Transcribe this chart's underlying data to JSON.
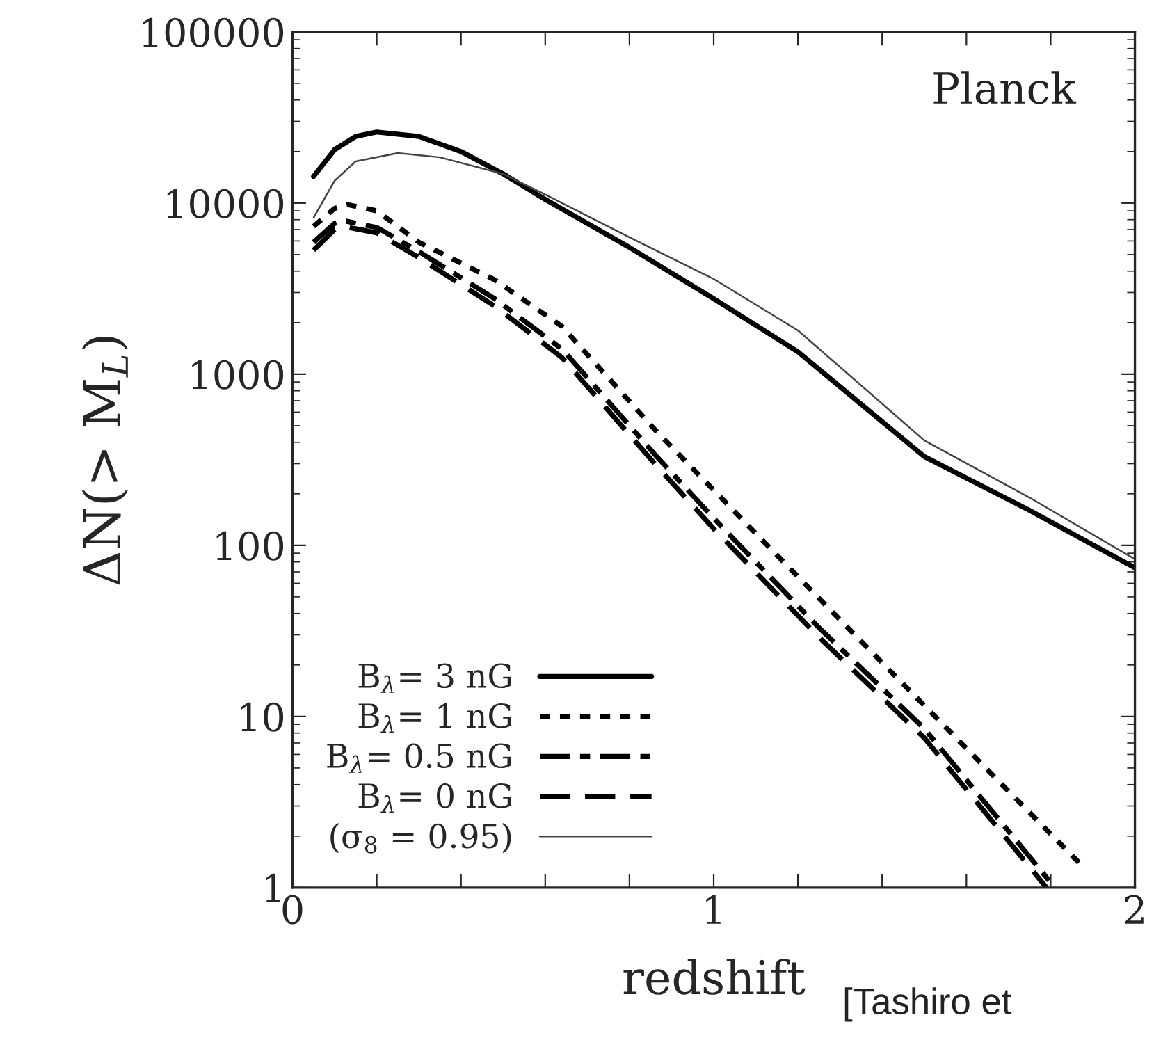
{
  "chart_data": {
    "type": "line",
    "xlabel": "redshift",
    "ylabel": "ΔN(> M$_{L}$)",
    "log": "y",
    "grid": false,
    "legend": "bottom left",
    "marker": "none",
    "xlim": [
      0,
      2
    ],
    "ylim": [
      1,
      100000
    ],
    "xticks": [
      0,
      {
        "value": 0.2,
        "label": null
      },
      {
        "value": 0.4,
        "label": null
      },
      {
        "value": 0.6,
        "label": null
      },
      {
        "value": 0.8,
        "label": null
      },
      1,
      {
        "value": 1.2,
        "label": null
      },
      {
        "value": 1.4,
        "label": null
      },
      {
        "value": 1.6,
        "label": null
      },
      {
        "value": 1.8,
        "label": null
      },
      2
    ],
    "yticks": [
      1,
      10,
      100,
      1000,
      10000,
      100000
    ],
    "series": [
      {
        "name": "B$_{λ}$= 3 nG",
        "color": "#000000",
        "line_style": "solid",
        "x": [
          0.05,
          0.1,
          0.15,
          0.2,
          0.3,
          0.4,
          0.5,
          0.6,
          0.8,
          1.0,
          1.2,
          1.5,
          1.75,
          2.0
        ],
        "values": [
          14300,
          20500,
          24500,
          26000,
          24500,
          20000,
          14800,
          10500,
          5500,
          2760,
          1350,
          330,
          160,
          74
        ]
      },
      {
        "name": "B$_{λ}$= 1 nG",
        "color": "#000000",
        "line_style": "dotted",
        "x": [
          0.05,
          0.1,
          0.13,
          0.2,
          0.3,
          0.48,
          0.64,
          0.86,
          1.0,
          1.25,
          1.62,
          1.88
        ],
        "values": [
          7300,
          9300,
          9800,
          9000,
          5900,
          3560,
          1900,
          475,
          210,
          49,
          5.8,
          1.3
        ]
      },
      {
        "name": "B$_{λ}$= 0.5 nG",
        "color": "#000000",
        "line_style": "dashdot",
        "x": [
          0.05,
          0.1,
          0.12,
          0.2,
          0.3,
          0.48,
          0.64,
          0.86,
          1.0,
          1.25,
          1.5,
          1.81
        ],
        "values": [
          5900,
          7600,
          7900,
          7200,
          5200,
          2760,
          1400,
          340,
          144,
          33,
          8.5,
          1
        ]
      },
      {
        "name": "B$_{λ}$= 0 nG",
        "color": "#000000",
        "line_style": "dashed",
        "x": [
          0.05,
          0.1,
          0.12,
          0.2,
          0.3,
          0.48,
          0.64,
          0.86,
          1.0,
          1.25,
          1.5,
          1.79
        ],
        "values": [
          5300,
          7000,
          7300,
          6700,
          4800,
          2500,
          1250,
          300,
          125,
          29,
          7.5,
          1
        ]
      },
      {
        "name": "(σ$_{8}$ = 0.95)",
        "color": "#444444",
        "line_style": "solid",
        "x": [
          0.05,
          0.1,
          0.15,
          0.25,
          0.35,
          0.5,
          0.6,
          0.8,
          1.0,
          1.2,
          1.5,
          1.75,
          2.0
        ],
        "values": [
          8200,
          13500,
          17500,
          19600,
          18500,
          14800,
          11200,
          6300,
          3600,
          1800,
          410,
          190,
          83
        ]
      }
    ],
    "annotations": [
      "Planck",
      "[Tashiro et"
    ]
  }
}
